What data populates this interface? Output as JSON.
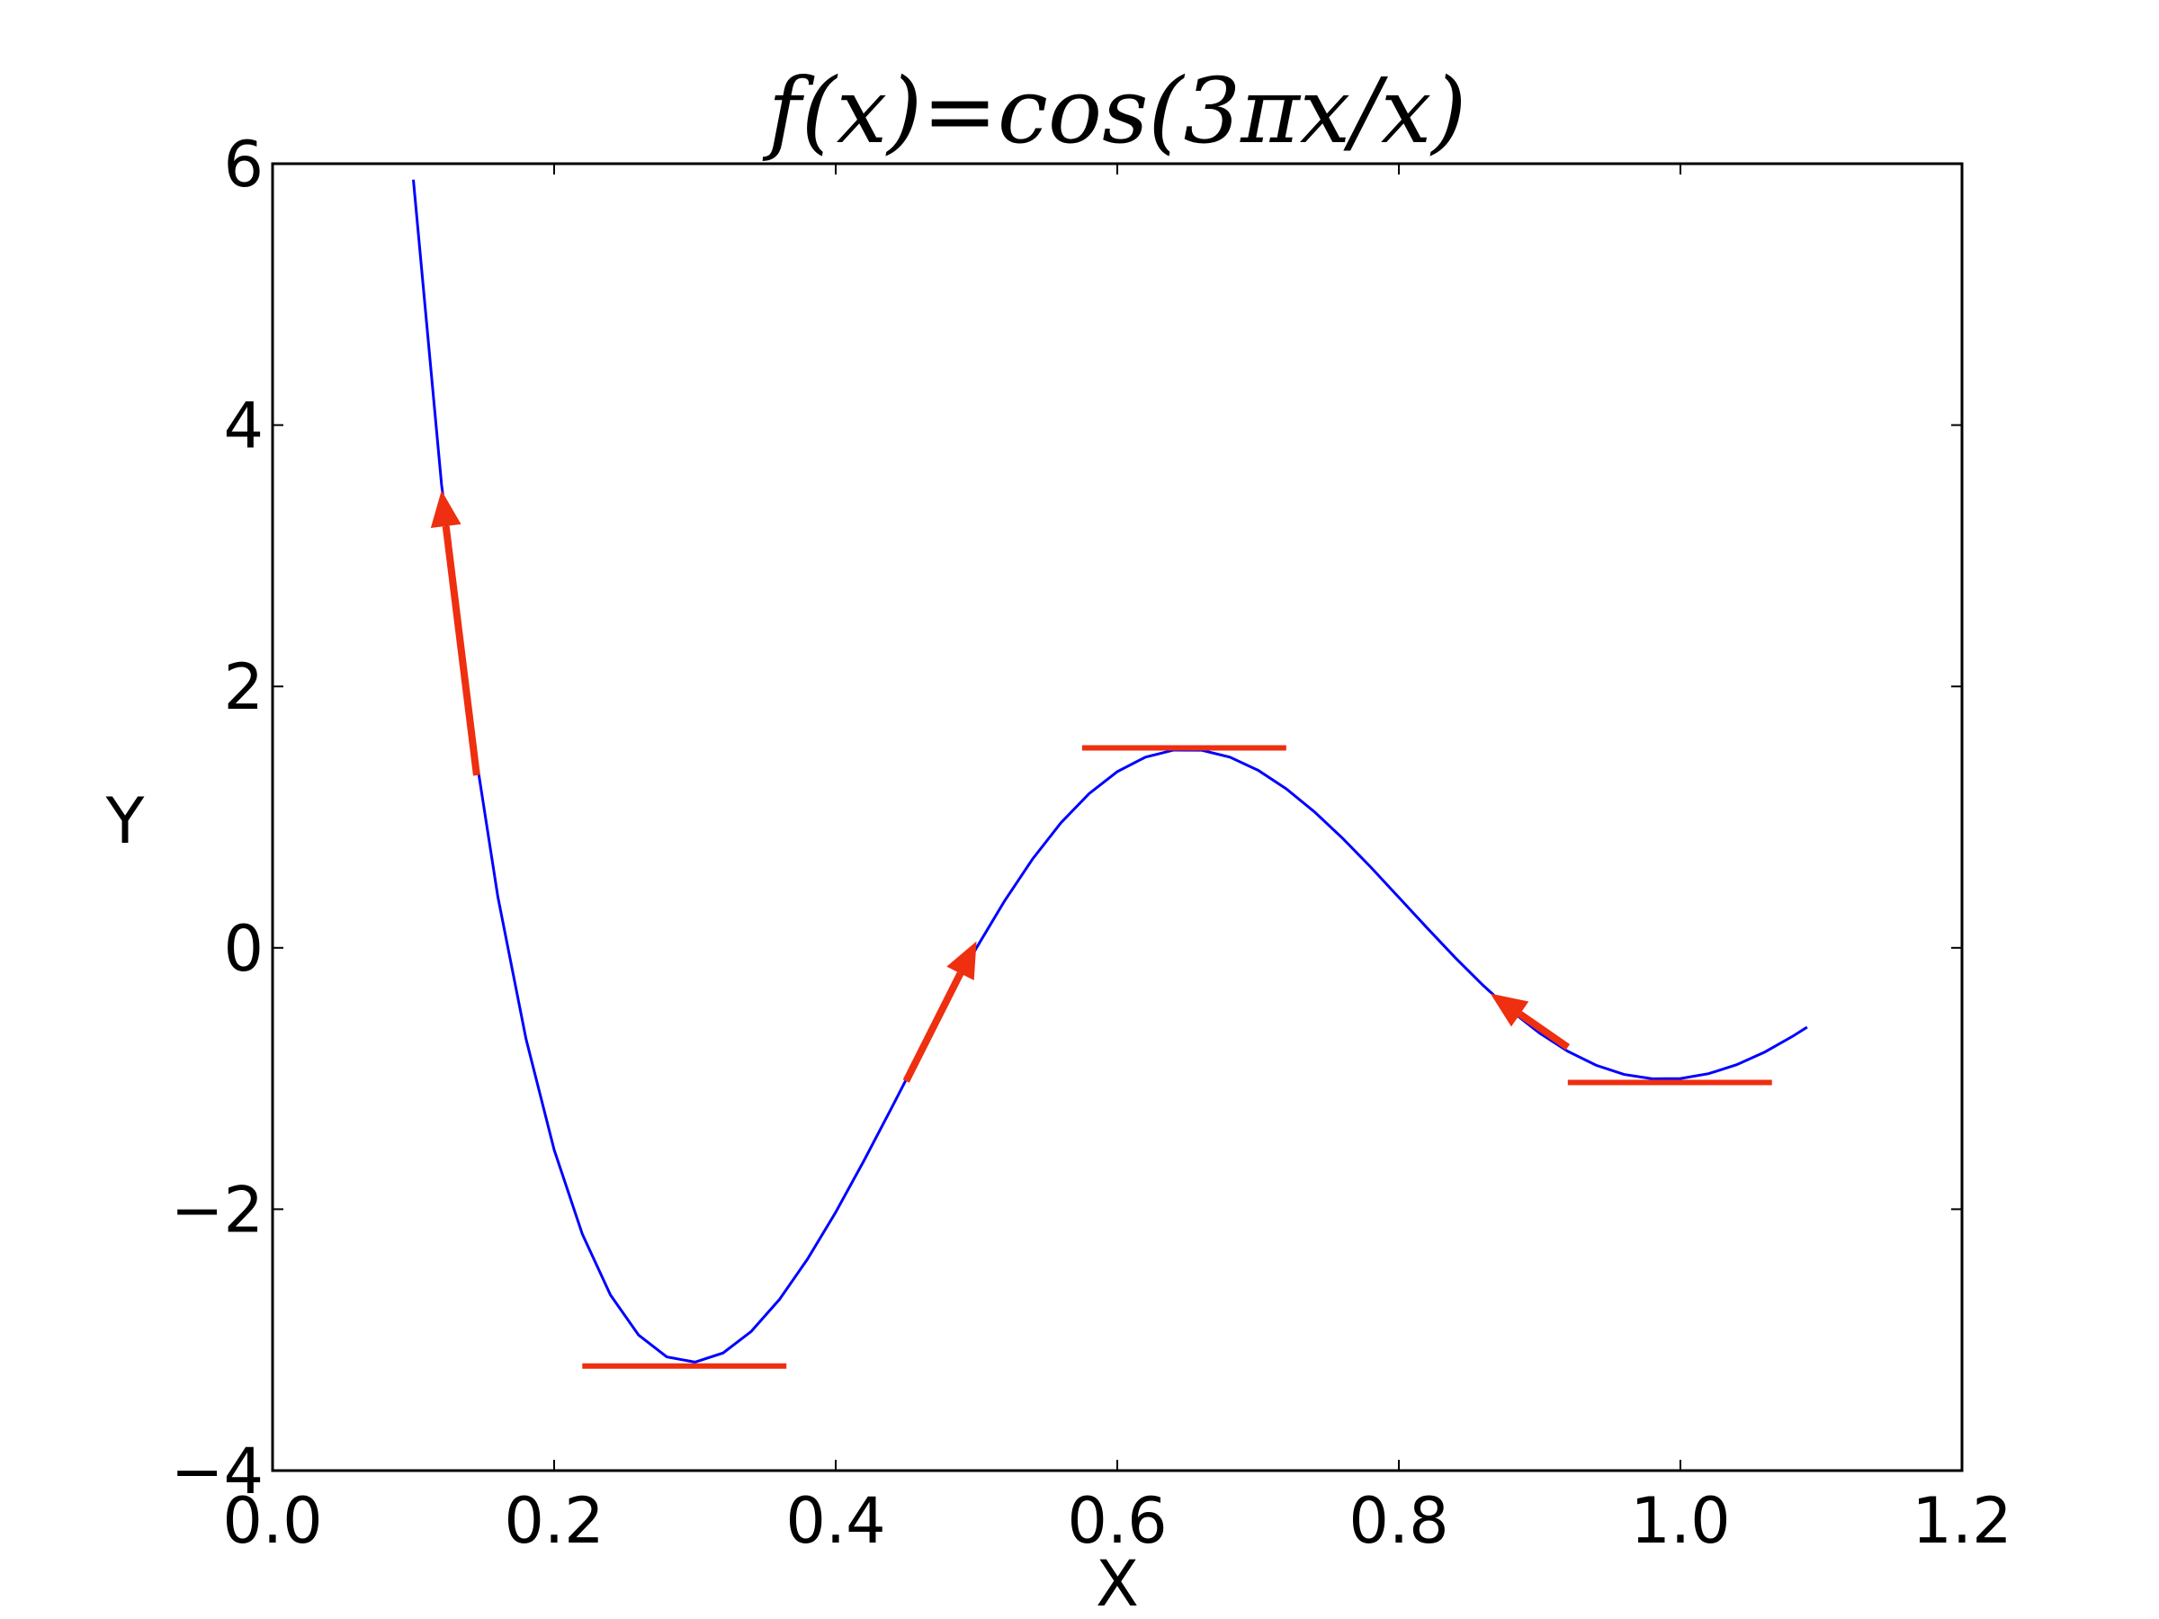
{
  "chart_data": {
    "type": "line",
    "title": "f(x)=cos(3πx/x)",
    "x_label": "X",
    "y_label": "Y",
    "x": [
      0.1,
      0.12,
      0.14,
      0.16,
      0.18,
      0.2,
      0.22,
      0.24,
      0.26,
      0.28,
      0.3,
      0.32,
      0.34,
      0.36,
      0.38,
      0.4,
      0.42,
      0.44,
      0.46,
      0.48,
      0.5,
      0.52,
      0.54,
      0.56,
      0.58,
      0.6,
      0.62,
      0.64,
      0.66,
      0.68,
      0.7,
      0.72,
      0.74,
      0.76,
      0.78,
      0.8,
      0.82,
      0.84,
      0.86,
      0.88,
      0.9,
      0.92,
      0.94,
      0.96,
      0.98,
      1.0,
      1.02,
      1.04,
      1.06,
      1.08,
      1.09
    ],
    "series": [
      {
        "color": "#0000ff",
        "values": [
          5.878,
          3.548,
          1.776,
          0.392,
          -0.696,
          -1.545,
          -2.19,
          -2.656,
          -2.963,
          -3.13,
          -3.17,
          -3.1,
          -2.935,
          -2.691,
          -2.381,
          -2.023,
          -1.63,
          -1.218,
          -0.8,
          -0.39,
          0,
          0.36,
          0.682,
          0.957,
          1.18,
          1.348,
          1.459,
          1.513,
          1.512,
          1.459,
          1.359,
          1.217,
          1.041,
          0.839,
          0.618,
          0.386,
          0.153,
          -0.075,
          -0.289,
          -0.484,
          -0.653,
          -0.792,
          -0.898,
          -0.969,
          -1.002,
          -1,
          -0.963,
          -0.894,
          -0.797,
          -0.675,
          -0.607
        ]
      }
    ],
    "annotation_color": "#ee2f10",
    "tangent_lines": [
      {
        "x1": 0.22,
        "y1": -3.2,
        "x2": 0.365,
        "y2": -3.2
      },
      {
        "x1": 0.575,
        "y1": 1.53,
        "x2": 0.72,
        "y2": 1.53
      },
      {
        "x1": 0.92,
        "y1": -1.03,
        "x2": 1.065,
        "y2": -1.03
      }
    ],
    "arrows": [
      {
        "x1": 0.145,
        "y1": 1.32,
        "x2": 0.12,
        "y2": 3.5
      },
      {
        "x1": 0.45,
        "y1": -1.02,
        "x2": 0.5,
        "y2": 0.05
      },
      {
        "x1": 0.92,
        "y1": -0.76,
        "x2": 0.865,
        "y2": -0.35
      }
    ],
    "xlim": [
      0.0,
      1.2
    ],
    "xticks": [
      {
        "value": 0.0,
        "label": "0.0"
      },
      0.2,
      0.4,
      0.6,
      0.8,
      {
        "value": 1.0,
        "label": "1.0"
      },
      1.2
    ],
    "ylim": [
      -4,
      6
    ],
    "yticks": [
      {
        "value": -4,
        "label": "−4"
      },
      {
        "value": -2,
        "label": "−2"
      },
      0,
      2,
      4,
      6
    ]
  }
}
